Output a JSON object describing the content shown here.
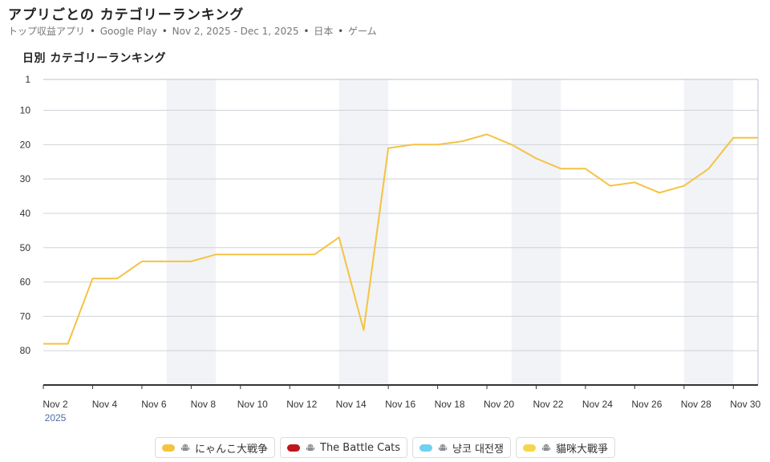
{
  "header": {
    "title": "アプリごとの カテゴリーランキング",
    "subtitle_source": "トップ収益アプリ",
    "subtitle_store": "Google Play",
    "subtitle_range": "Nov 2, 2025 - Dec 1, 2025",
    "subtitle_country": "日本",
    "subtitle_category": "ゲーム",
    "separator": "•"
  },
  "section_title": "日別 カテゴリーランキング",
  "legend": [
    {
      "label": "にゃんこ大戦争",
      "color": "#f5c342",
      "icon": "android-icon"
    },
    {
      "label": "The Battle Cats",
      "color": "#c0161b",
      "icon": "android-icon"
    },
    {
      "label": "냥코 대전쟁",
      "color": "#6fd0f0",
      "icon": "android-icon"
    },
    {
      "label": "貓咪大戰爭",
      "color": "#f7d54a",
      "icon": "android-icon"
    }
  ],
  "chart_data": {
    "type": "line",
    "title": "日別 カテゴリーランキング",
    "xlabel": "",
    "ylabel": "",
    "y_inverted": true,
    "ylim": [
      1,
      90
    ],
    "yticks": [
      1,
      10,
      20,
      30,
      40,
      50,
      60,
      70,
      80
    ],
    "x_tick_labels": [
      "Nov 2",
      "Nov 4",
      "Nov 6",
      "Nov 8",
      "Nov 10",
      "Nov 12",
      "Nov 14",
      "Nov 16",
      "Nov 18",
      "Nov 20",
      "Nov 22",
      "Nov 24",
      "Nov 26",
      "Nov 28",
      "Nov 30"
    ],
    "x_year_label": "2025",
    "x_start": "Nov 2",
    "x_end": "Dec 1",
    "weekend_bands": [
      [
        "Nov 7",
        "Nov 9"
      ],
      [
        "Nov 14",
        "Nov 16"
      ],
      [
        "Nov 21",
        "Nov 23"
      ],
      [
        "Nov 28",
        "Nov 30"
      ]
    ],
    "grid": true,
    "line_color": "#f5c342",
    "series": [
      {
        "name": "にゃんこ大戦争",
        "x": [
          "Nov 2",
          "Nov 3",
          "Nov 4",
          "Nov 5",
          "Nov 6",
          "Nov 7",
          "Nov 8",
          "Nov 9",
          "Nov 10",
          "Nov 11",
          "Nov 12",
          "Nov 13",
          "Nov 14",
          "Nov 15",
          "Nov 16",
          "Nov 17",
          "Nov 18",
          "Nov 19",
          "Nov 20",
          "Nov 21",
          "Nov 22",
          "Nov 23",
          "Nov 24",
          "Nov 25",
          "Nov 26",
          "Nov 27",
          "Nov 28",
          "Nov 29",
          "Nov 30",
          "Dec 1"
        ],
        "values": [
          78,
          78,
          59,
          59,
          54,
          54,
          54,
          52,
          52,
          52,
          52,
          52,
          47,
          74,
          21,
          20,
          20,
          19,
          17,
          20,
          24,
          27,
          27,
          32,
          31,
          34,
          32,
          27,
          18,
          18
        ]
      }
    ]
  }
}
